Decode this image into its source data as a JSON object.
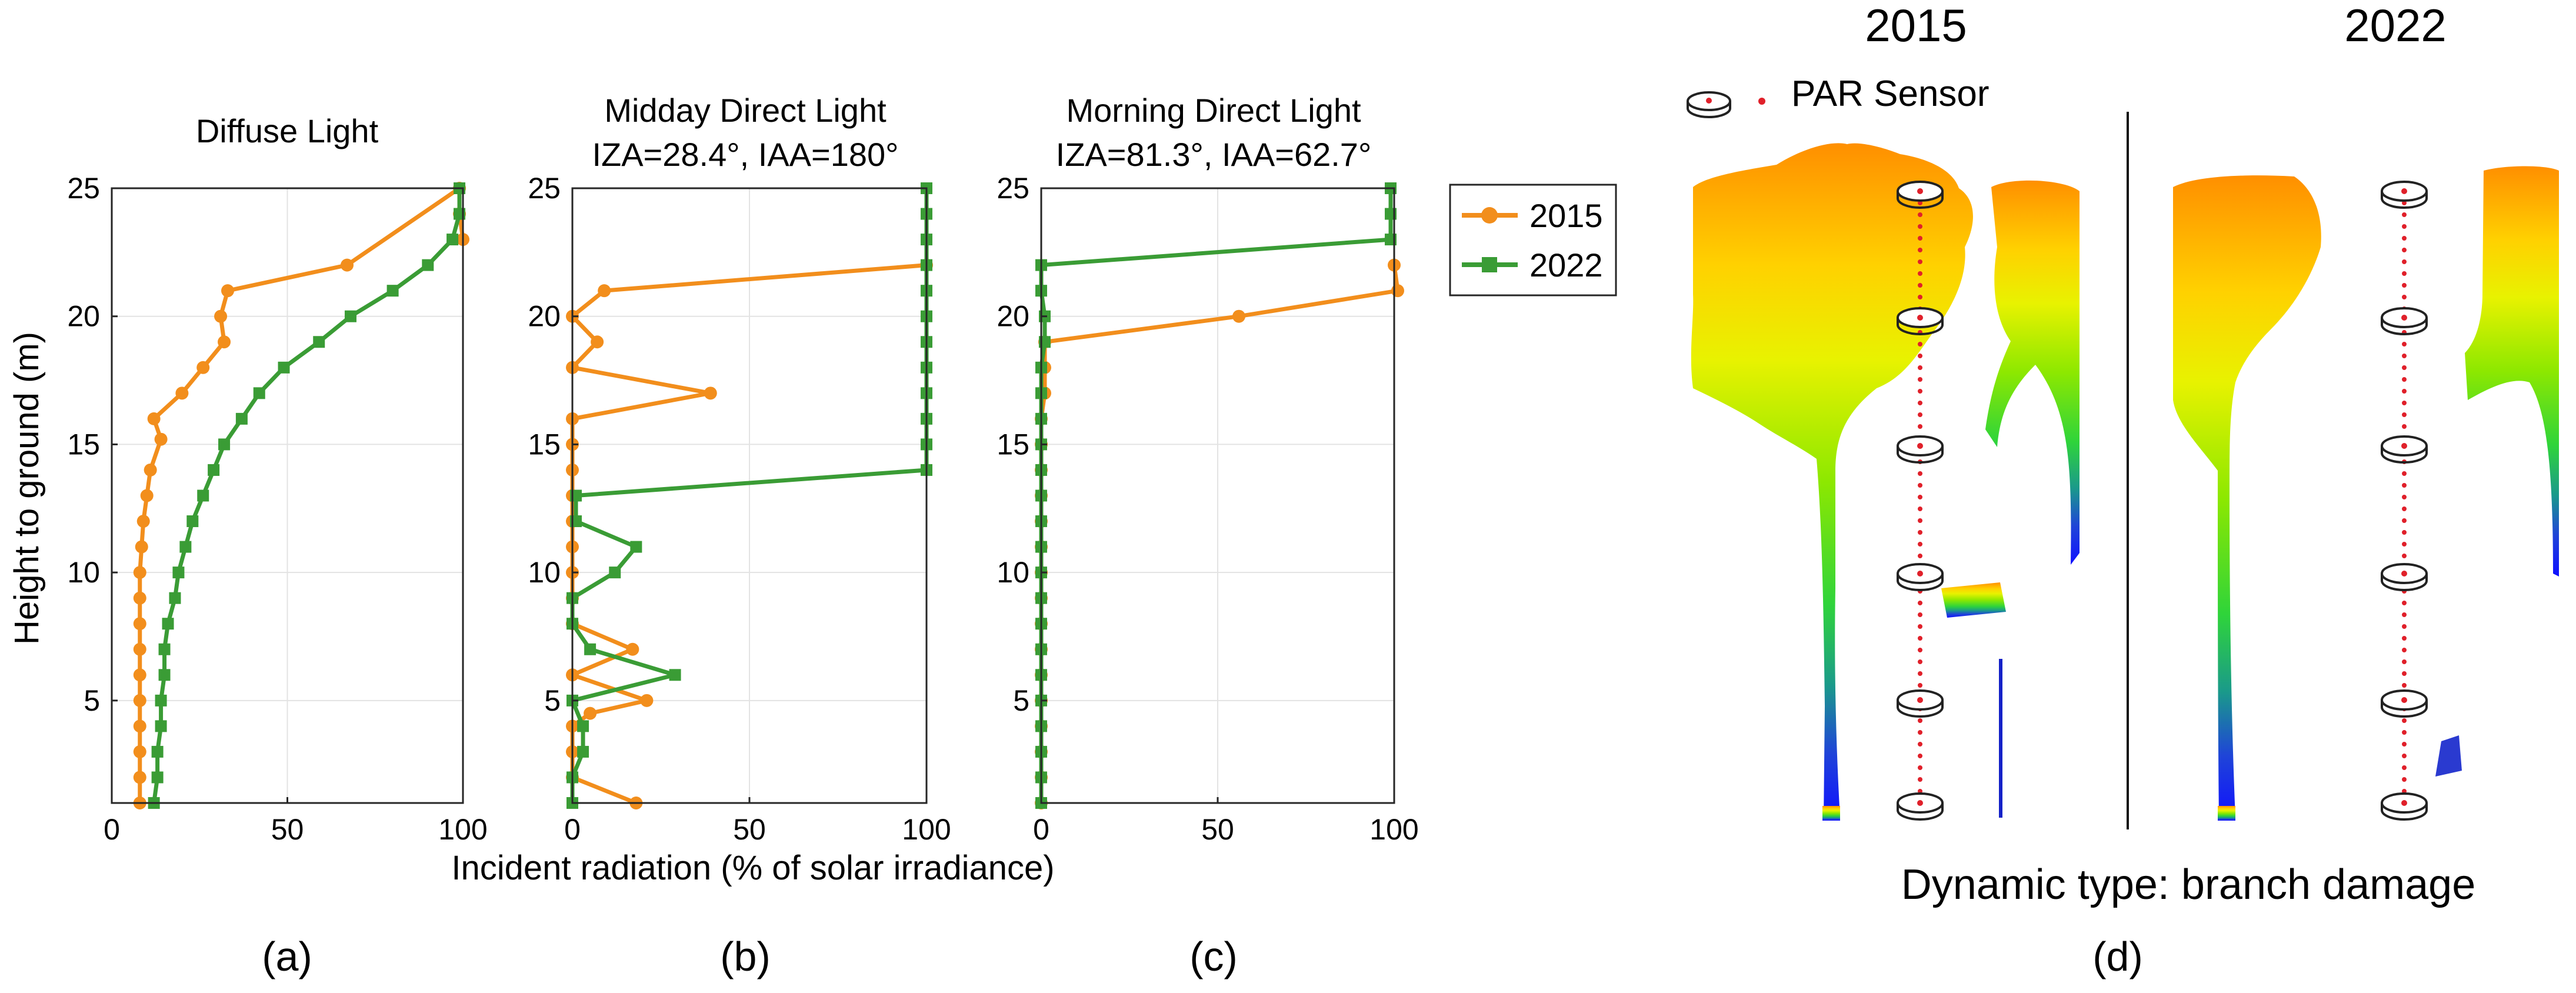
{
  "colors": {
    "y2015": "#f28e1c",
    "y2022": "#3a9c35",
    "sensor_dot": "#e0202a"
  },
  "chart_data": [
    {
      "type": "line",
      "panel": "(a)",
      "title": [
        "Diffuse Light"
      ],
      "xlabel": "",
      "ylabel": "Height to ground (m)",
      "xlim": [
        0,
        100
      ],
      "ylim": [
        1,
        25
      ],
      "xticks": [
        0,
        50,
        100
      ],
      "yticks": [
        5,
        10,
        15,
        20,
        25
      ],
      "grid": true,
      "series": [
        {
          "name": "2015",
          "points": [
            [
              100,
              23
            ],
            [
              99,
              24
            ],
            [
              99,
              25
            ],
            [
              67,
              22
            ],
            [
              33,
              21
            ],
            [
              31,
              20
            ],
            [
              32,
              19
            ],
            [
              26,
              18
            ],
            [
              20,
              17
            ],
            [
              12,
              16
            ],
            [
              14,
              15.2
            ],
            [
              11,
              14
            ],
            [
              10,
              13
            ],
            [
              9,
              12
            ],
            [
              8.5,
              11
            ],
            [
              8,
              10
            ],
            [
              8,
              9
            ],
            [
              8,
              8
            ],
            [
              8,
              7
            ],
            [
              8,
              6
            ],
            [
              8,
              5
            ],
            [
              8,
              4
            ],
            [
              8,
              3
            ],
            [
              8,
              2
            ],
            [
              8,
              1
            ]
          ]
        },
        {
          "name": "2022",
          "points": [
            [
              99,
              25
            ],
            [
              99,
              24
            ],
            [
              97,
              23
            ],
            [
              90,
              22
            ],
            [
              80,
              21
            ],
            [
              68,
              20
            ],
            [
              59,
              19
            ],
            [
              49,
              18
            ],
            [
              42,
              17
            ],
            [
              37,
              16
            ],
            [
              32,
              15
            ],
            [
              29,
              14
            ],
            [
              26,
              13
            ],
            [
              23,
              12
            ],
            [
              21,
              11
            ],
            [
              19,
              10
            ],
            [
              18,
              9
            ],
            [
              16,
              8
            ],
            [
              15,
              7
            ],
            [
              15,
              6
            ],
            [
              14,
              5
            ],
            [
              14,
              4
            ],
            [
              13,
              3
            ],
            [
              13,
              2
            ],
            [
              12,
              1
            ]
          ]
        }
      ]
    },
    {
      "type": "line",
      "panel": "(b)",
      "title": [
        "Midday Direct Light",
        "IZA=28.4°, IAA=180°"
      ],
      "xlabel": "Incident radiation (% of solar irradiance)",
      "ylabel": "",
      "xlim": [
        0,
        100
      ],
      "ylim": [
        1,
        25
      ],
      "xticks": [
        0,
        50,
        100
      ],
      "yticks": [
        5,
        10,
        15,
        20,
        25
      ],
      "grid": true,
      "series": [
        {
          "name": "2015",
          "points": [
            [
              18,
              1
            ],
            [
              0,
              2
            ],
            [
              0,
              3
            ],
            [
              0,
              4
            ],
            [
              5,
              4.5
            ],
            [
              21,
              5
            ],
            [
              0,
              6
            ],
            [
              17,
              7
            ],
            [
              0,
              8
            ],
            [
              0,
              9
            ],
            [
              0,
              10
            ],
            [
              0,
              11
            ],
            [
              0,
              12
            ],
            [
              0,
              13
            ],
            [
              0,
              14
            ],
            [
              0,
              15
            ],
            [
              0,
              16
            ],
            [
              39,
              17
            ],
            [
              0,
              18
            ],
            [
              7,
              19
            ],
            [
              0,
              20
            ],
            [
              9,
              21
            ],
            [
              100,
              22
            ]
          ]
        },
        {
          "name": "2022",
          "points": [
            [
              100,
              25
            ],
            [
              100,
              24
            ],
            [
              100,
              23
            ],
            [
              100,
              22
            ],
            [
              100,
              21
            ],
            [
              100,
              20
            ],
            [
              100,
              19
            ],
            [
              100,
              18
            ],
            [
              100,
              17
            ],
            [
              100,
              16
            ],
            [
              100,
              15
            ],
            [
              100,
              14
            ],
            [
              1,
              13
            ],
            [
              1,
              12
            ],
            [
              18,
              11
            ],
            [
              12,
              10
            ],
            [
              0,
              9
            ],
            [
              0,
              8
            ],
            [
              5,
              7
            ],
            [
              29,
              6
            ],
            [
              0,
              5
            ],
            [
              3,
              4
            ],
            [
              3,
              3
            ],
            [
              0,
              2
            ],
            [
              0,
              1
            ]
          ]
        }
      ]
    },
    {
      "type": "line",
      "panel": "(c)",
      "title": [
        "Morning Direct Light",
        "IZA=81.3°, IAA=62.7°"
      ],
      "xlabel": "",
      "ylabel": "",
      "xlim": [
        0,
        100
      ],
      "ylim": [
        1,
        25
      ],
      "xticks": [
        0,
        50,
        100
      ],
      "yticks": [
        5,
        10,
        15,
        20,
        25
      ],
      "grid": true,
      "series": [
        {
          "name": "2015",
          "points": [
            [
              100,
              22
            ],
            [
              101,
              21
            ],
            [
              56,
              20
            ],
            [
              1,
              19
            ],
            [
              1,
              18
            ],
            [
              1,
              17
            ],
            [
              0,
              16
            ],
            [
              0,
              15
            ],
            [
              0,
              14
            ],
            [
              0,
              13
            ],
            [
              0,
              12
            ],
            [
              0,
              11
            ],
            [
              0,
              10
            ],
            [
              0,
              9
            ],
            [
              0,
              8
            ],
            [
              0,
              7
            ],
            [
              0,
              6
            ],
            [
              0,
              5
            ],
            [
              0,
              4
            ],
            [
              0,
              3
            ],
            [
              0,
              2
            ],
            [
              0,
              1
            ]
          ]
        },
        {
          "name": "2022",
          "points": [
            [
              99,
              25
            ],
            [
              99,
              24
            ],
            [
              99,
              23
            ],
            [
              0,
              22
            ],
            [
              0,
              21
            ],
            [
              1,
              20
            ],
            [
              1,
              19
            ],
            [
              0,
              18
            ],
            [
              0,
              17
            ],
            [
              0,
              16
            ],
            [
              0,
              15
            ],
            [
              0,
              14
            ],
            [
              0,
              13
            ],
            [
              0,
              12
            ],
            [
              0,
              11
            ],
            [
              0,
              10
            ],
            [
              0,
              9
            ],
            [
              0,
              8
            ],
            [
              0,
              7
            ],
            [
              0,
              6
            ],
            [
              0,
              5
            ],
            [
              0,
              4
            ],
            [
              0,
              3
            ],
            [
              0,
              2
            ],
            [
              0,
              1
            ]
          ]
        }
      ]
    }
  ],
  "legend": {
    "entries": [
      "2015",
      "2022"
    ],
    "placement": "right of panel (c)"
  },
  "panel_d": {
    "label": "(d)",
    "year_left": "2015",
    "year_right": "2022",
    "sensor_legend": "PAR Sensor",
    "caption": "Dynamic type: branch damage",
    "sensor_count": 6
  }
}
